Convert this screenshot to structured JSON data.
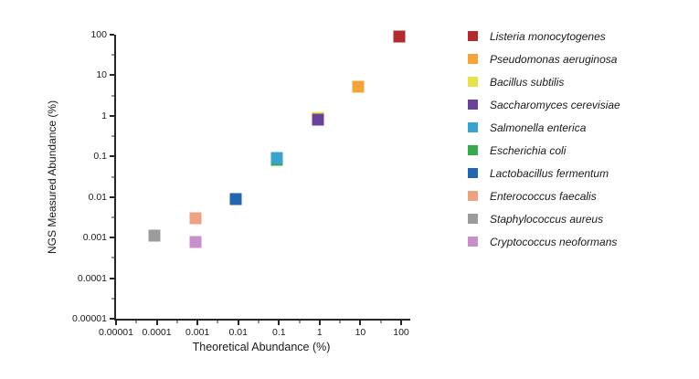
{
  "chart_data": {
    "type": "scatter",
    "marker": "square",
    "title": "",
    "xlabel": "Theoretical Abundance (%)",
    "ylabel": "NGS Measured Abundance (%)",
    "x_scale": "log",
    "y_scale": "log",
    "xlim": [
      1e-05,
      100
    ],
    "ylim": [
      1e-05,
      100
    ],
    "grid": false,
    "legend_position": "right",
    "x_tick_labels": [
      "0.00001",
      "0.0001",
      "0.001",
      "0.01",
      "0.1",
      "1",
      "10",
      "100"
    ],
    "y_tick_labels": [
      "100",
      "10",
      "1",
      "0.1",
      "0.01",
      "0.001",
      "0.0001",
      "0.00001"
    ],
    "series": [
      {
        "name": "Listeria monocytogenes",
        "color": "#B22B31",
        "x": 89.1,
        "y": 88
      },
      {
        "name": "Pseudomonas aeruginosa",
        "color": "#F3A53B",
        "x": 8.9,
        "y": 5.2
      },
      {
        "name": "Bacillus subtilis",
        "color": "#E6E24C",
        "x": 0.89,
        "y": 0.89
      },
      {
        "name": "Saccharomyces cerevisiae",
        "color": "#6A4199",
        "x": 0.89,
        "y": 0.8
      },
      {
        "name": "Salmonella enterica",
        "color": "#3AA2CF",
        "x": 0.089,
        "y": 0.092
      },
      {
        "name": "Escherichia coli",
        "color": "#39A84E",
        "x": 0.089,
        "y": 0.083
      },
      {
        "name": "Lactobacillus fermentum",
        "color": "#2166AF",
        "x": 0.0089,
        "y": 0.0089
      },
      {
        "name": "Enterococcus faecalis",
        "color": "#EDA283",
        "x": 0.00089,
        "y": 0.003
      },
      {
        "name": "Staphylococcus aureus",
        "color": "#9B9B9E",
        "x": 8.9e-05,
        "y": 0.0011
      },
      {
        "name": "Cryptococcus neoformans",
        "color": "#C88FC9",
        "x": 0.00089,
        "y": 0.00078
      }
    ],
    "draw_order": [
      0,
      1,
      2,
      3,
      5,
      4,
      6,
      7,
      8,
      9
    ]
  }
}
